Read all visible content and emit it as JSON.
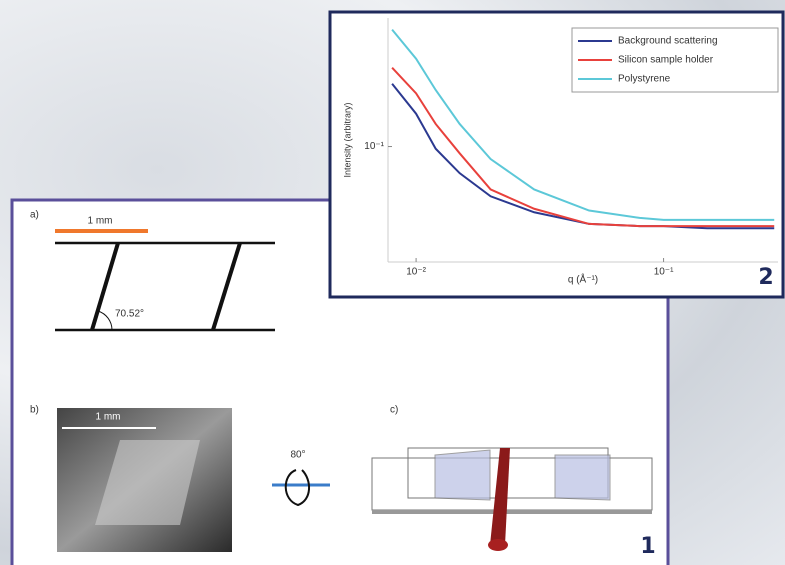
{
  "chart_data": {
    "type": "line",
    "xlabel": "q (Å⁻¹)",
    "ylabel": "Intensity (arbitrary)",
    "x": [
      0.008,
      0.01,
      0.012,
      0.015,
      0.02,
      0.03,
      0.05,
      0.08,
      0.1,
      0.15,
      0.2,
      0.28
    ],
    "series": [
      {
        "name": "Background scattering",
        "color": "#2b3990",
        "values": [
          0.24,
          0.158,
          0.097,
          0.069,
          0.05,
          0.04,
          0.034,
          0.033,
          0.033,
          0.032,
          0.032,
          0.032
        ]
      },
      {
        "name": "Silicon sample holder",
        "color": "#e8413c",
        "values": [
          0.3,
          0.21,
          0.137,
          0.091,
          0.055,
          0.042,
          0.034,
          0.033,
          0.033,
          0.033,
          0.033,
          0.033
        ]
      },
      {
        "name": "Polystyrene",
        "color": "#5cc8d8",
        "values": [
          0.51,
          0.34,
          0.22,
          0.137,
          0.084,
          0.055,
          0.041,
          0.037,
          0.036,
          0.036,
          0.036,
          0.036
        ]
      }
    ],
    "xlim": [
      0.0077,
      0.29
    ],
    "ylim": [
      0.02,
      0.6
    ],
    "xticks": [
      {
        "value": 0.01,
        "label": "10⁻²"
      },
      {
        "value": 0.1,
        "label": "10⁻¹"
      }
    ],
    "yticks": [
      {
        "value": 0.1,
        "label": "10⁻¹"
      }
    ],
    "log_x": true,
    "log_y": true,
    "legend": "upper right"
  },
  "panel": {
    "a": {
      "label": "a)",
      "scale": "1 mm",
      "angle": "70.52°"
    },
    "b": {
      "label": "b)",
      "scale": "1 mm"
    },
    "rotation": "80°",
    "c": {
      "label": "c)"
    }
  },
  "badges": [
    "1",
    "2"
  ]
}
